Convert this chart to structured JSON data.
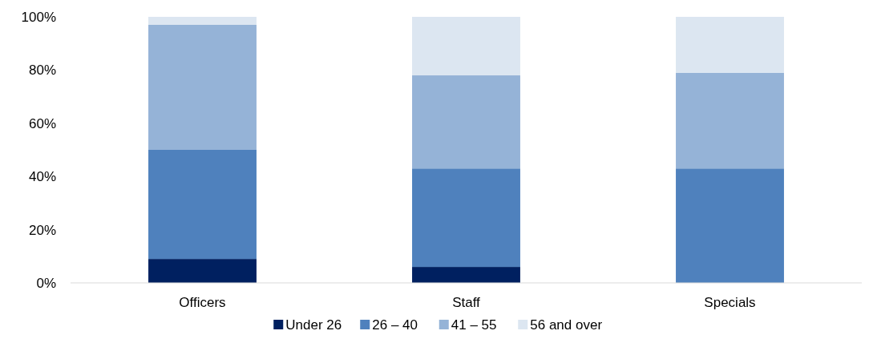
{
  "chart_data": {
    "type": "bar",
    "stacked": true,
    "categories": [
      "Officers",
      "Staff",
      "Specials"
    ],
    "series": [
      {
        "name": "Under 26",
        "color": "#002060",
        "values": [
          9,
          6,
          0
        ]
      },
      {
        "name": "26 – 40",
        "color": "#4f81bd",
        "values": [
          41,
          37,
          43
        ]
      },
      {
        "name": "41 – 55",
        "color": "#95b3d7",
        "values": [
          47,
          35,
          36
        ]
      },
      {
        "name": "56 and over",
        "color": "#dce6f1",
        "values": [
          3,
          22,
          21
        ]
      }
    ],
    "ylim": [
      0,
      100
    ],
    "yticks": [
      {
        "value": 0,
        "label": "0%"
      },
      {
        "value": 20,
        "label": "20%"
      },
      {
        "value": 40,
        "label": "40%"
      },
      {
        "value": 60,
        "label": "60%"
      },
      {
        "value": 80,
        "label": "80%"
      },
      {
        "value": 100,
        "label": "100%"
      }
    ],
    "grid": false,
    "legend": "bottom"
  }
}
